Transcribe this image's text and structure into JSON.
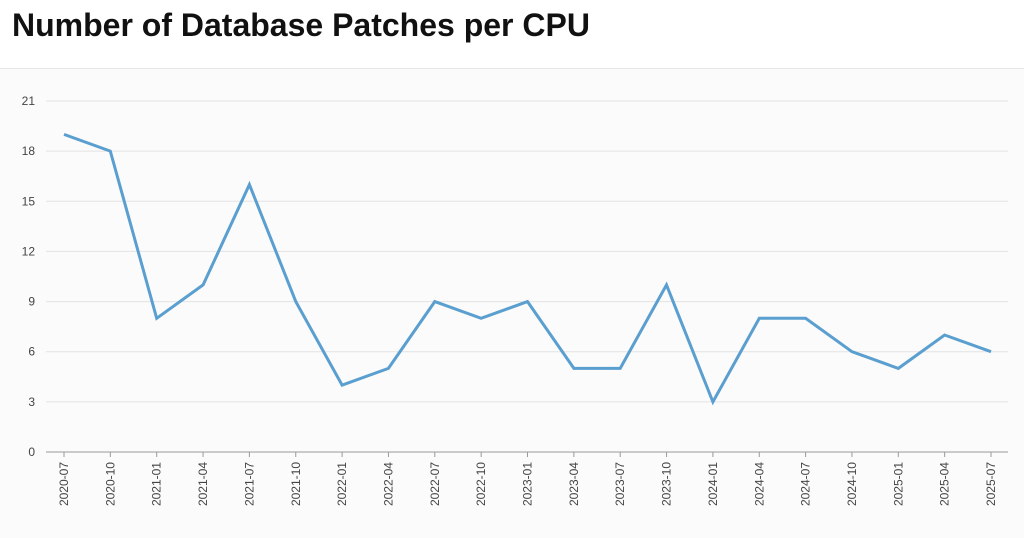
{
  "title": "Number of Database Patches per CPU",
  "chart_data": {
    "type": "line",
    "title": "Number of Database Patches per CPU",
    "xlabel": "",
    "ylabel": "",
    "categories": [
      "2020-07",
      "2020-10",
      "2021-01",
      "2021-04",
      "2021-07",
      "2021-10",
      "2022-01",
      "2022-04",
      "2022-07",
      "2022-10",
      "2023-01",
      "2023-04",
      "2023-07",
      "2023-10",
      "2024-01",
      "2024-04",
      "2024-07",
      "2024-10",
      "2025-01",
      "2025-04",
      "2025-07"
    ],
    "series": [
      {
        "values": [
          19,
          18,
          8,
          10,
          16,
          9,
          4,
          5,
          9,
          8,
          9,
          5,
          5,
          10,
          3,
          8,
          8,
          6,
          5,
          7,
          6
        ],
        "color": "#5a9fcf"
      }
    ],
    "ylim": [
      0,
      21
    ],
    "yticks": [
      0,
      3,
      6,
      9,
      12,
      15,
      18,
      21
    ],
    "grid": true,
    "legend": "none"
  }
}
